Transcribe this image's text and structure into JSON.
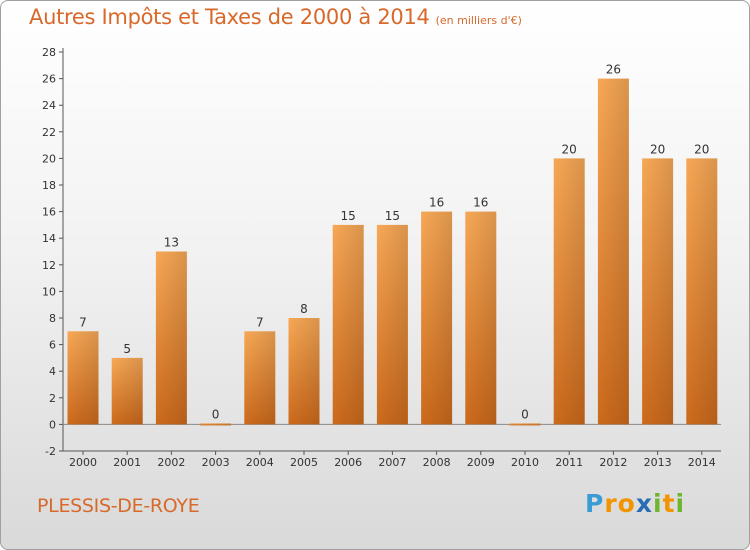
{
  "chart_data": {
    "type": "bar",
    "title": "Autres Impôts et Taxes de 2000 à 2014",
    "subtitle": "(en milliers d'€)",
    "categories": [
      "2000",
      "2001",
      "2002",
      "2003",
      "2004",
      "2005",
      "2006",
      "2007",
      "2008",
      "2009",
      "2010",
      "2011",
      "2012",
      "2013",
      "2014"
    ],
    "values": [
      7,
      5,
      13,
      0,
      7,
      8,
      15,
      15,
      16,
      16,
      0,
      20,
      26,
      20,
      20
    ],
    "ylim": [
      -2,
      28
    ],
    "yticks": [
      -2,
      0,
      2,
      4,
      6,
      8,
      10,
      12,
      14,
      16,
      18,
      20,
      22,
      24,
      26,
      28
    ],
    "grid": false,
    "bar_color": "#f0903c"
  },
  "footer": {
    "commune": "PLESSIS-DE-ROYE",
    "logo": {
      "letters": [
        "P",
        "r",
        "o",
        "x",
        "i",
        "t",
        "i"
      ],
      "colors": [
        "#3a9bd5",
        "#f29400",
        "#f29400",
        "#2a6db5",
        "#6fb630",
        "#f29400",
        "#6fb630"
      ]
    }
  }
}
